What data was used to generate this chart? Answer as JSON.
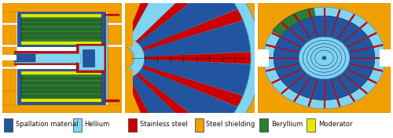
{
  "fig_width": 5.0,
  "fig_height": 1.76,
  "dpi": 100,
  "background_color": "#ffffff",
  "legend_items": [
    {
      "label": "Spallation material",
      "color": "#2255a0"
    },
    {
      "label": "Hellium",
      "color": "#7fd4f0"
    },
    {
      "label": "Stainless steel",
      "color": "#cc0000"
    },
    {
      "label": "Steel shielding",
      "color": "#f0a000"
    },
    {
      "label": "Beryllium",
      "color": "#2e7d32"
    },
    {
      "label": "Moderator",
      "color": "#e8e800"
    }
  ],
  "orange": "#f0a000",
  "blue_dark": "#2255a0",
  "blue_light": "#7fd4f0",
  "red": "#cc0000",
  "green": "#2e7d32",
  "yellow": "#e8e800",
  "white": "#ffffff"
}
